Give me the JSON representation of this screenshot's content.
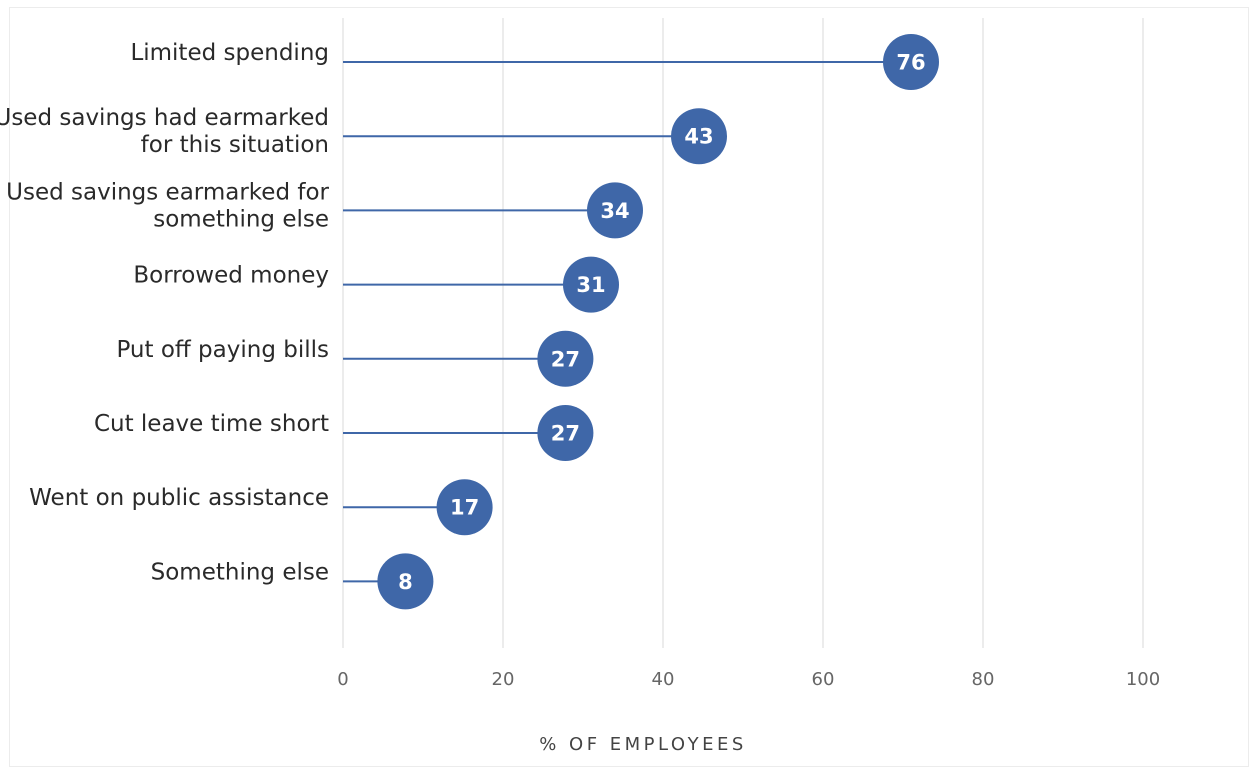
{
  "chart_data": {
    "type": "lollipop",
    "orientation": "horizontal",
    "title": "",
    "xlabel": "% OF EMPLOYEES",
    "ylabel": "",
    "xlim": [
      0,
      100
    ],
    "xticks": [
      0,
      20,
      40,
      60,
      80,
      100
    ],
    "grid": "vertical",
    "color": "#3f67a8",
    "categories": [
      [
        "Limited spending"
      ],
      [
        "Used savings had earmarked",
        "for this situation"
      ],
      [
        "Used savings earmarked for",
        "something else"
      ],
      [
        "Borrowed money"
      ],
      [
        "Put off paying bills"
      ],
      [
        "Cut leave time short"
      ],
      [
        "Went on public assistance"
      ],
      [
        "Something else"
      ]
    ],
    "values": [
      76,
      43,
      34,
      31,
      27,
      27,
      17,
      8
    ],
    "positions": [
      71,
      44.5,
      34,
      31,
      27.8,
      27.8,
      15.2,
      7.8
    ]
  }
}
